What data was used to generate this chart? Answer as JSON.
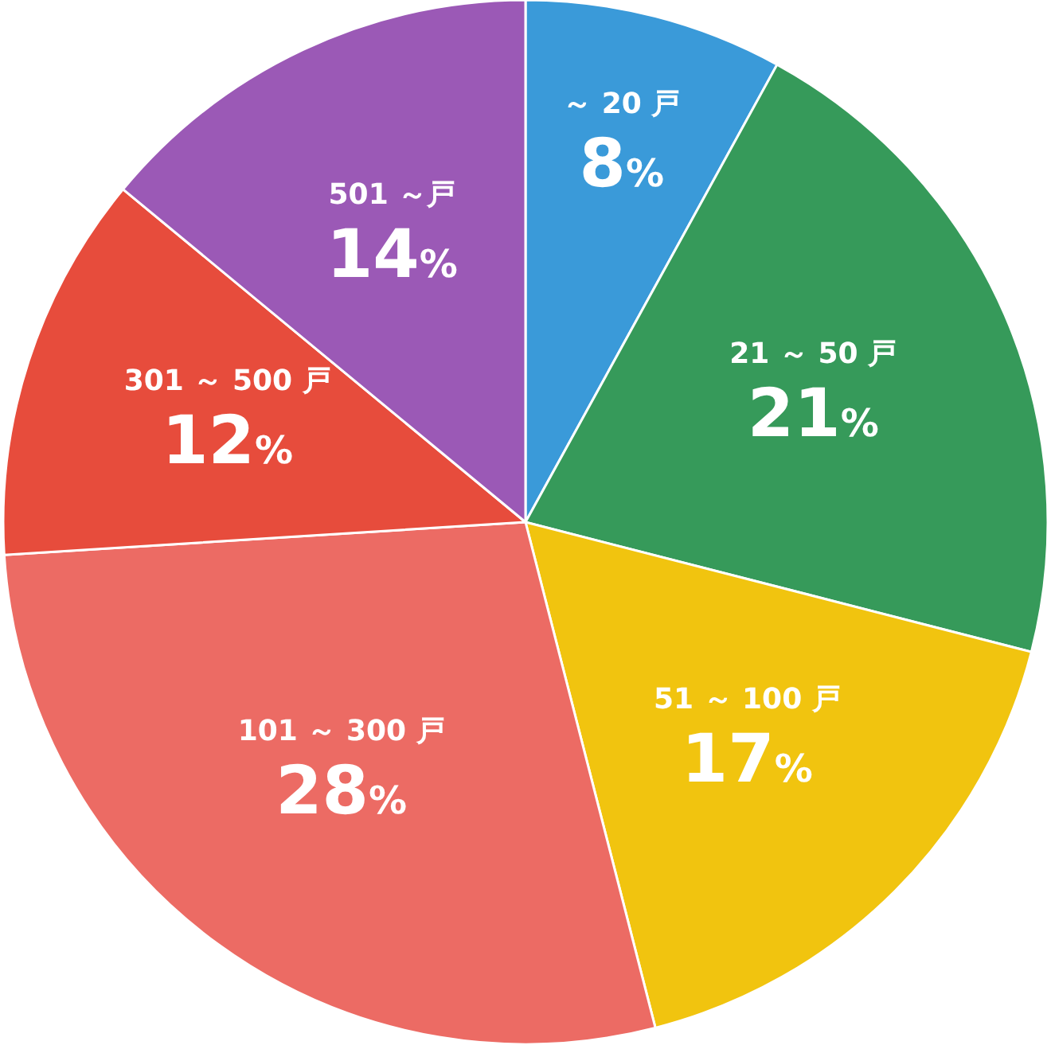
{
  "chart_data": {
    "type": "pie",
    "categories": [
      "～ 20 戸",
      "21 ～ 50 戸",
      "51 ～ 100 戸",
      "101 ～ 300 戸",
      "301 ～ 500 戸",
      "501 ～戸"
    ],
    "values": [
      8,
      21,
      17,
      28,
      12,
      14
    ],
    "value_labels": [
      "8%",
      "21%",
      "17%",
      "28%",
      "12%",
      "14%"
    ],
    "colors": [
      "#3a9ad9",
      "#369a5a",
      "#f1c40f",
      "#ec6b64",
      "#e74c3c",
      "#9b59b6"
    ]
  }
}
